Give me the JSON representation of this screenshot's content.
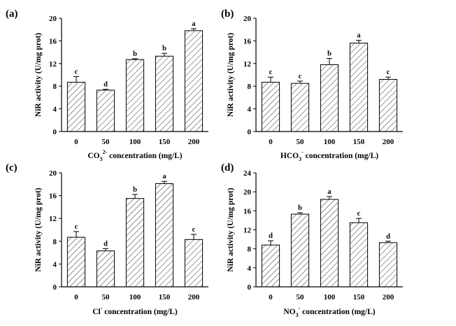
{
  "figure": {
    "title": ""
  },
  "chart_data": [
    {
      "id": "a",
      "type": "bar",
      "panel_label": "(a)",
      "categories": [
        "0",
        "50",
        "100",
        "150",
        "200"
      ],
      "values": [
        8.7,
        7.3,
        12.7,
        13.3,
        17.8
      ],
      "errors": [
        1.0,
        0.15,
        0.15,
        0.5,
        0.35
      ],
      "significance": [
        "c",
        "d",
        "b",
        "b",
        "a"
      ],
      "ylabel": "NiR activity (U/mg prot)",
      "xlabel": {
        "ion": "CO",
        "sub": "3",
        "sup": "2-",
        "rest": " concentration (mg/L)"
      },
      "ylim": [
        0,
        20
      ],
      "yticks": [
        0,
        4,
        8,
        12,
        16,
        20
      ]
    },
    {
      "id": "b",
      "type": "bar",
      "panel_label": "(b)",
      "categories": [
        "0",
        "50",
        "100",
        "150",
        "200"
      ],
      "values": [
        8.7,
        8.5,
        11.8,
        15.6,
        9.2
      ],
      "errors": [
        0.9,
        0.4,
        1.1,
        0.5,
        0.4
      ],
      "significance": [
        "c",
        "c",
        "b",
        "a",
        "c"
      ],
      "ylabel": "NiR activity (U/mg prot)",
      "xlabel": {
        "ion": "HCO",
        "sub": "3",
        "sup": "-",
        "rest": " concentration (mg/L)"
      },
      "ylim": [
        0,
        20
      ],
      "yticks": [
        0,
        4,
        8,
        12,
        16,
        20
      ]
    },
    {
      "id": "c",
      "type": "bar",
      "panel_label": "(c)",
      "categories": [
        "0",
        "50",
        "100",
        "150",
        "200"
      ],
      "values": [
        8.7,
        6.3,
        15.5,
        18.1,
        8.3
      ],
      "errors": [
        1.0,
        0.4,
        0.7,
        0.4,
        0.9
      ],
      "significance": [
        "c",
        "d",
        "b",
        "a",
        "c"
      ],
      "ylabel": "NiR activity (U/mg prot)",
      "xlabel": {
        "ion": "Cl",
        "sub": "",
        "sup": "-",
        "rest": " concentration (mg/L)"
      },
      "ylim": [
        0,
        20
      ],
      "yticks": [
        0,
        4,
        8,
        12,
        16,
        20
      ]
    },
    {
      "id": "d",
      "type": "bar",
      "panel_label": "(d)",
      "categories": [
        "0",
        "50",
        "100",
        "150",
        "200"
      ],
      "values": [
        8.8,
        15.3,
        18.4,
        13.5,
        9.3
      ],
      "errors": [
        0.9,
        0.3,
        0.6,
        0.9,
        0.3
      ],
      "significance": [
        "d",
        "b",
        "a",
        "c",
        "d"
      ],
      "ylabel": "NiR activity (U/mg prot)",
      "xlabel": {
        "ion": "NO",
        "sub": "3",
        "sup": "-",
        "rest": " concentration (mg/L)"
      },
      "ylim": [
        0,
        24
      ],
      "yticks": [
        0,
        4,
        8,
        12,
        16,
        20,
        24
      ]
    }
  ]
}
